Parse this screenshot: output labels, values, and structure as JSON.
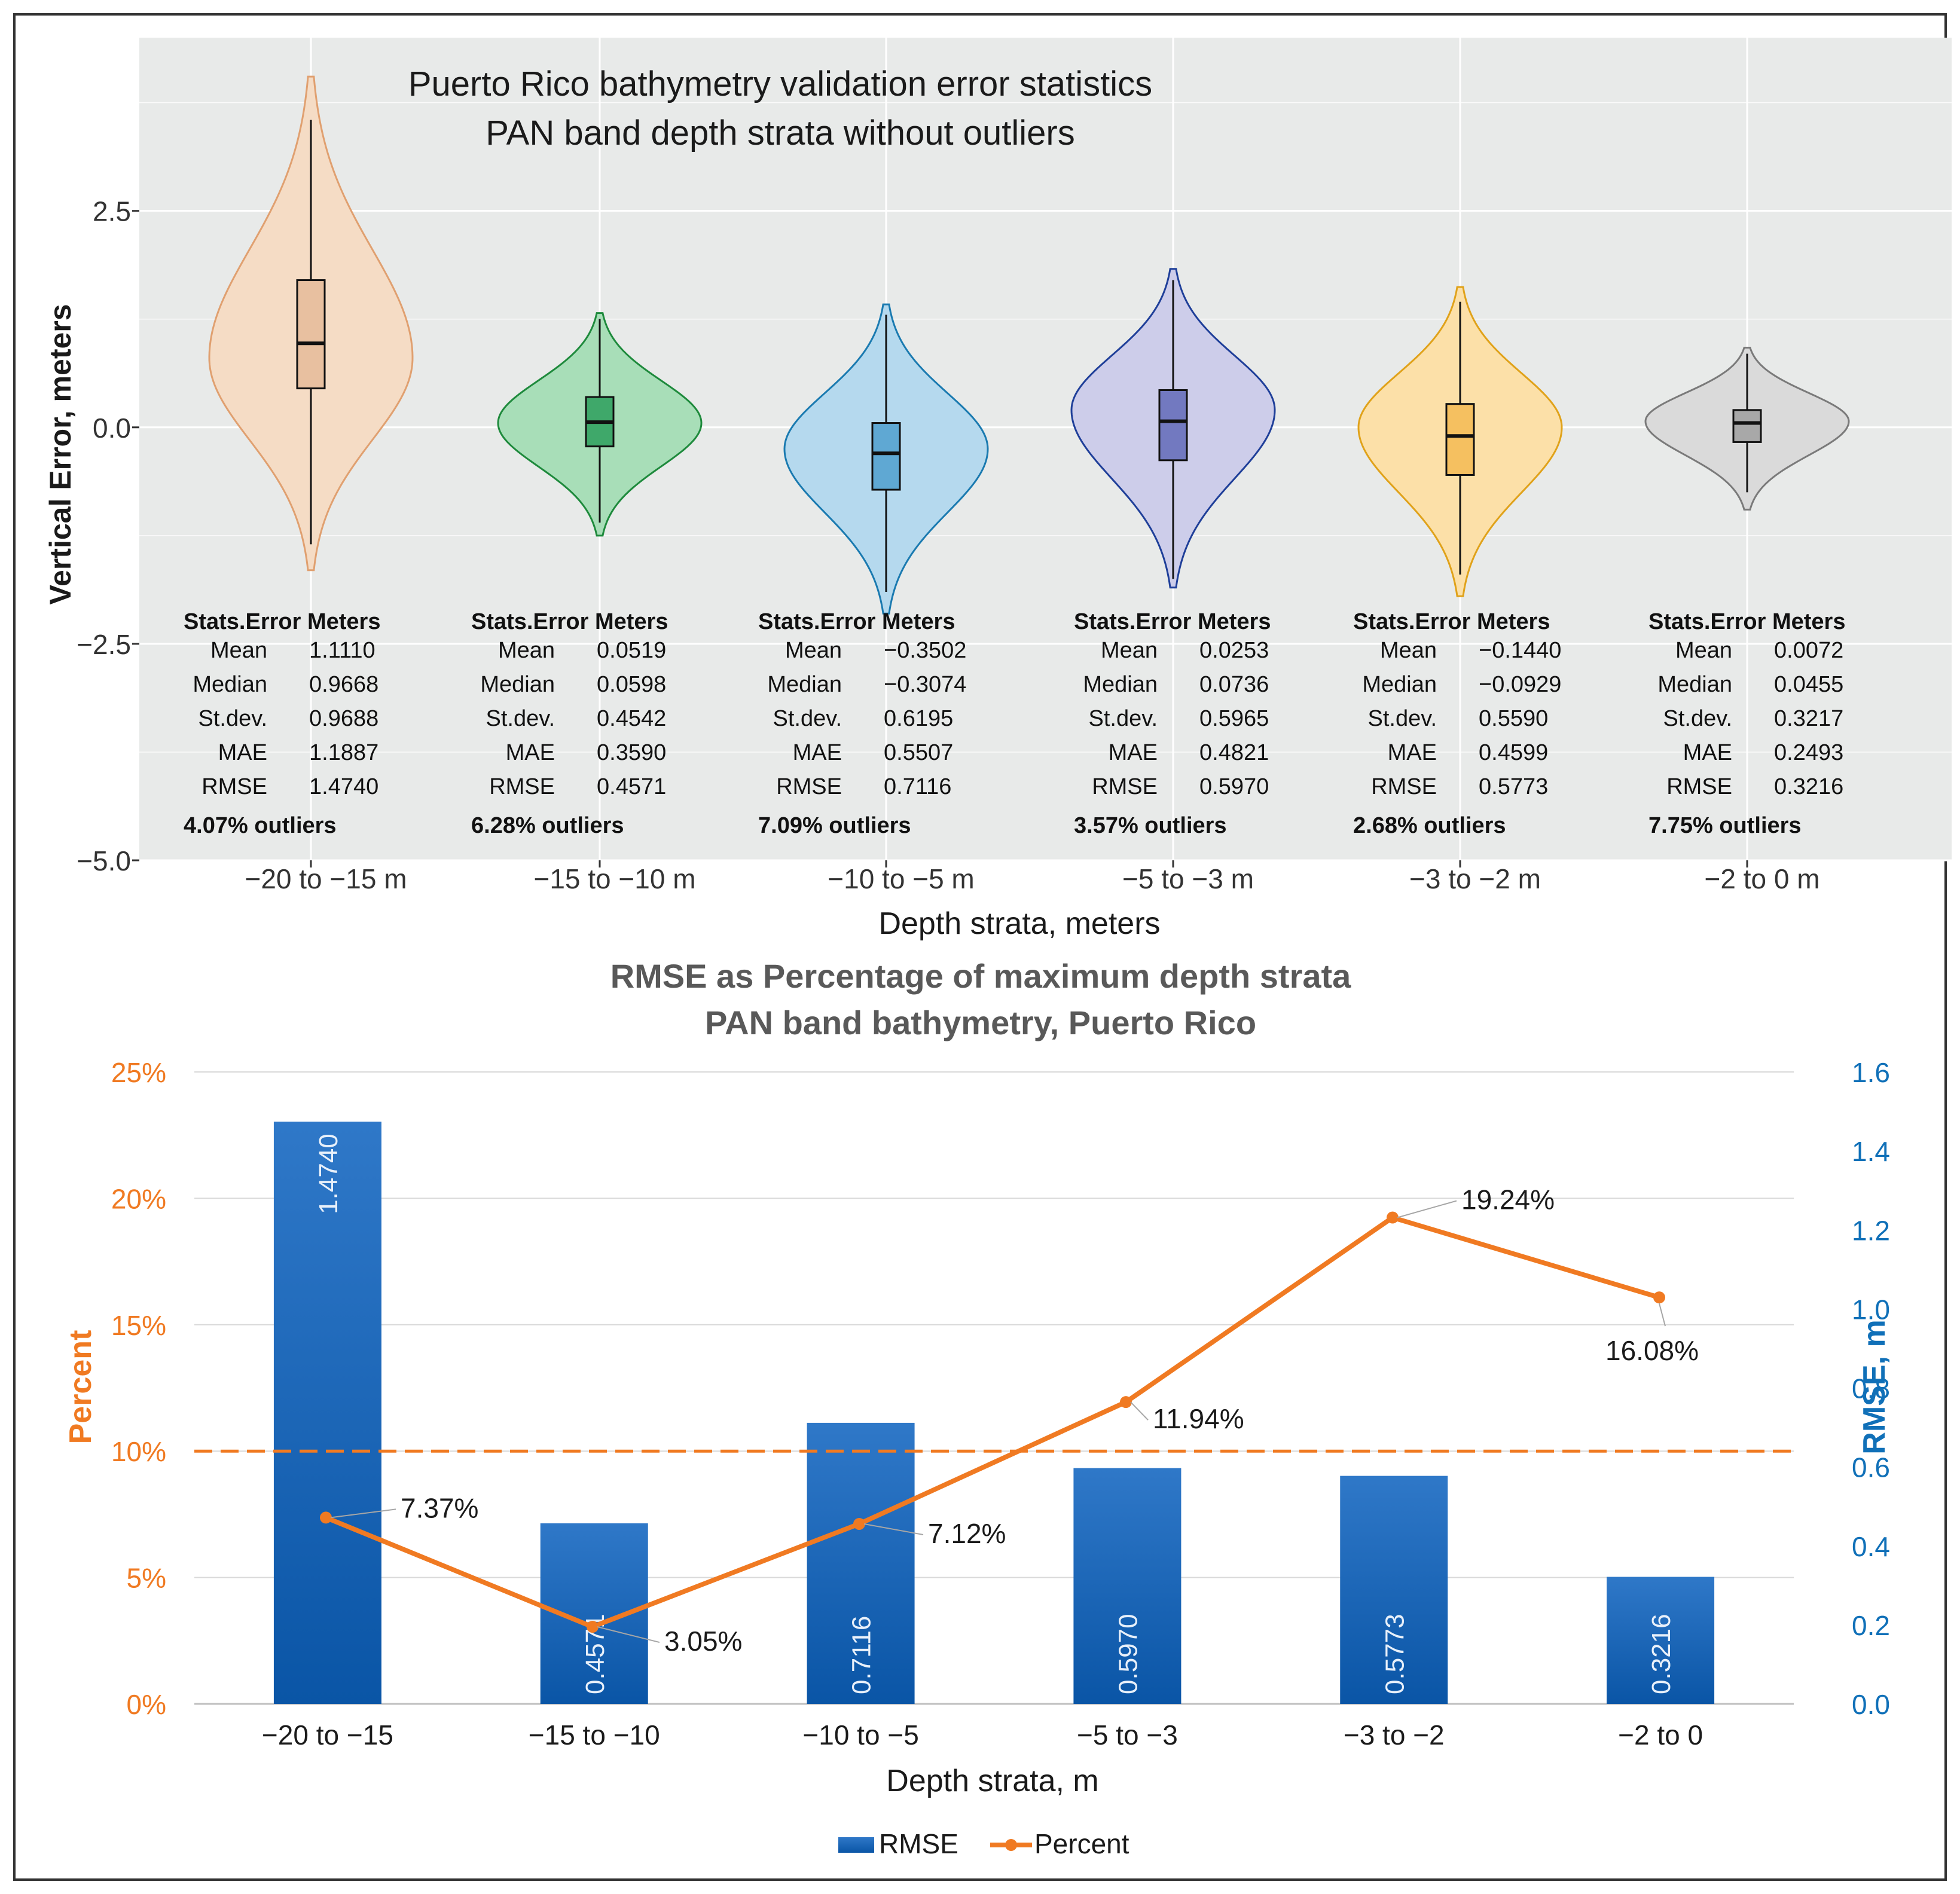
{
  "colors": {
    "panel_bg": "#E8EAE9",
    "grid": "#FFFFFF",
    "bar_blue": "#0E5DAE",
    "line_orange": "#F07A22",
    "axis_orange": "#F07A22",
    "axis_blue": "#1070B8",
    "title_gray": "#595959",
    "frame": "#333333"
  },
  "chart_data": [
    {
      "type": "violin",
      "title": "Puerto Rico bathymetry validation error statistics",
      "subtitle": "PAN band depth strata without outliers",
      "xlabel": "Depth strata, meters",
      "ylabel": "Vertical Error, meters",
      "ylim": [
        -5.0,
        4.5
      ],
      "yticks": [
        2.5,
        0.0,
        -2.5,
        -5.0
      ],
      "ytick_labels": [
        "2.5",
        "0.0",
        "−2.5",
        "−5.0"
      ],
      "categories": [
        "−20 to −15 m",
        "−15 to −10 m",
        "−10 to −5 m",
        "−5 to −3 m",
        "−3 to −2 m",
        "−2 to 0 m"
      ],
      "stats_header": [
        "Stats.Error",
        "Meters"
      ],
      "stat_names": [
        "Mean",
        "Median",
        "St.dev.",
        "MAE",
        "RMSE"
      ],
      "series": [
        {
          "name": "−20 to −15 m",
          "fill": "#F5DCC5",
          "stroke": "#E0A070",
          "box_fill": "#E8C0A0",
          "min": -1.65,
          "max": 4.05,
          "whisker_low": -1.35,
          "whisker_high": 3.55,
          "q1": 0.45,
          "median": 0.97,
          "q3": 1.7,
          "mode": 0.8,
          "stats": [
            "1.1110",
            "0.9668",
            "0.9688",
            "1.1887",
            "1.4740"
          ],
          "outliers": "4.07% outliers"
        },
        {
          "name": "−15 to −10 m",
          "fill": "#A8DEB8",
          "stroke": "#1E8A3C",
          "box_fill": "#3FA86A",
          "min": -1.25,
          "max": 1.32,
          "whisker_low": -1.1,
          "whisker_high": 1.25,
          "q1": -0.22,
          "median": 0.06,
          "q3": 0.35,
          "mode": 0.05,
          "stats": [
            "0.0519",
            "0.0598",
            "0.4542",
            "0.3590",
            "0.4571"
          ],
          "outliers": "6.28% outliers"
        },
        {
          "name": "−10 to −5 m",
          "fill": "#B5D9EE",
          "stroke": "#1A7AB0",
          "box_fill": "#5FA8D3",
          "min": -2.15,
          "max": 1.42,
          "whisker_low": -1.9,
          "whisker_high": 1.3,
          "q1": -0.72,
          "median": -0.3,
          "q3": 0.05,
          "mode": -0.25,
          "stats": [
            "−0.3502",
            "−0.3074",
            "0.6195",
            "0.5507",
            "0.7116"
          ],
          "outliers": "7.09% outliers"
        },
        {
          "name": "−5 to −3 m",
          "fill": "#CDCDEA",
          "stroke": "#1F3F99",
          "box_fill": "#7279C0",
          "min": -1.85,
          "max": 1.83,
          "whisker_low": -1.75,
          "whisker_high": 1.7,
          "q1": -0.38,
          "median": 0.07,
          "q3": 0.43,
          "mode": 0.2,
          "stats": [
            "0.0253",
            "0.0736",
            "0.5965",
            "0.4821",
            "0.5970"
          ],
          "outliers": "3.57% outliers"
        },
        {
          "name": "−3 to −2 m",
          "fill": "#FCE0A8",
          "stroke": "#E0A21A",
          "box_fill": "#F5C060",
          "min": -1.95,
          "max": 1.62,
          "whisker_low": -1.7,
          "whisker_high": 1.45,
          "q1": -0.55,
          "median": -0.1,
          "q3": 0.27,
          "mode": 0.0,
          "stats": [
            "−0.1440",
            "−0.0929",
            "0.5590",
            "0.4599",
            "0.5773"
          ],
          "outliers": "2.68% outliers"
        },
        {
          "name": "−2 to 0 m",
          "fill": "#DADADA",
          "stroke": "#7A7A7A",
          "box_fill": "#A8A8A8",
          "min": -0.95,
          "max": 0.92,
          "whisker_low": -0.75,
          "whisker_high": 0.85,
          "q1": -0.17,
          "median": 0.05,
          "q3": 0.2,
          "mode": 0.07,
          "stats": [
            "0.0072",
            "0.0455",
            "0.3217",
            "0.2493",
            "0.3216"
          ],
          "outliers": "7.75% outliers"
        }
      ]
    },
    {
      "type": "bar+line",
      "title": "RMSE as Percentage of maximum depth strata",
      "subtitle": "PAN band bathymetry, Puerto Rico",
      "xlabel": "Depth strata, m",
      "ylabel_left": "Percent",
      "ylabel_right": "RMSE, m",
      "categories": [
        "−20 to −15",
        "−15 to −10",
        "−10 to −5",
        "−5 to −3",
        "−3 to −2",
        "−2 to 0"
      ],
      "left_ticks": [
        "0%",
        "5%",
        "10%",
        "15%",
        "20%",
        "25%"
      ],
      "left_ylim": [
        0,
        25
      ],
      "right_ticks": [
        "0.0",
        "0.2",
        "0.4",
        "0.6",
        "0.8",
        "1.0",
        "1.2",
        "1.4",
        "1.6"
      ],
      "right_ylim": [
        0,
        1.6
      ],
      "reference_line_percent": 10,
      "series": [
        {
          "name": "RMSE",
          "axis": "right",
          "type": "bar",
          "values": [
            1.474,
            0.4571,
            0.7116,
            0.597,
            0.5773,
            0.3216
          ],
          "labels": [
            "1.4740",
            "0.4571",
            "0.7116",
            "0.5970",
            "0.5773",
            "0.3216"
          ]
        },
        {
          "name": "Percent",
          "axis": "left",
          "type": "line",
          "values": [
            7.37,
            3.05,
            7.12,
            11.94,
            19.24,
            16.08
          ],
          "labels": [
            "7.37%",
            "3.05%",
            "7.12%",
            "11.94%",
            "19.24%",
            "16.08%"
          ]
        }
      ],
      "legend": [
        "RMSE",
        "Percent"
      ]
    }
  ]
}
